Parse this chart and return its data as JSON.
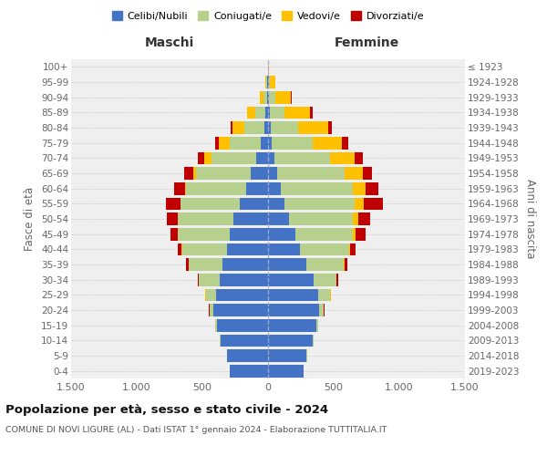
{
  "age_groups": [
    "0-4",
    "5-9",
    "10-14",
    "15-19",
    "20-24",
    "25-29",
    "30-34",
    "35-39",
    "40-44",
    "45-49",
    "50-54",
    "55-59",
    "60-64",
    "65-69",
    "70-74",
    "75-79",
    "80-84",
    "85-89",
    "90-94",
    "95-99",
    "100+"
  ],
  "birth_years": [
    "2019-2023",
    "2014-2018",
    "2009-2013",
    "2004-2008",
    "1999-2003",
    "1994-1998",
    "1989-1993",
    "1984-1988",
    "1979-1983",
    "1974-1978",
    "1969-1973",
    "1964-1968",
    "1959-1963",
    "1954-1958",
    "1949-1953",
    "1944-1948",
    "1939-1943",
    "1934-1938",
    "1929-1933",
    "1924-1928",
    "≤ 1923"
  ],
  "male_celibi": [
    290,
    310,
    360,
    390,
    415,
    395,
    365,
    345,
    315,
    295,
    265,
    215,
    165,
    130,
    88,
    55,
    28,
    18,
    8,
    5,
    2
  ],
  "male_coniugati": [
    2,
    3,
    5,
    10,
    30,
    80,
    160,
    260,
    340,
    390,
    420,
    450,
    460,
    420,
    340,
    240,
    150,
    80,
    30,
    8,
    0
  ],
  "male_vedovi": [
    0,
    0,
    0,
    1,
    1,
    2,
    1,
    1,
    2,
    3,
    5,
    5,
    10,
    20,
    60,
    80,
    90,
    60,
    25,
    5,
    0
  ],
  "male_divorziati": [
    0,
    0,
    0,
    1,
    2,
    5,
    10,
    20,
    30,
    55,
    80,
    110,
    80,
    70,
    50,
    30,
    20,
    5,
    2,
    0,
    0
  ],
  "female_celibi": [
    270,
    295,
    340,
    370,
    390,
    385,
    345,
    295,
    245,
    205,
    158,
    122,
    95,
    70,
    50,
    30,
    18,
    12,
    7,
    5,
    2
  ],
  "female_coniugati": [
    2,
    3,
    5,
    12,
    35,
    90,
    175,
    280,
    370,
    440,
    490,
    540,
    550,
    510,
    420,
    310,
    210,
    110,
    50,
    12,
    0
  ],
  "female_vedovi": [
    0,
    0,
    0,
    0,
    1,
    2,
    3,
    6,
    12,
    25,
    40,
    65,
    95,
    140,
    190,
    220,
    230,
    200,
    120,
    40,
    2
  ],
  "female_divorziati": [
    0,
    0,
    0,
    1,
    2,
    5,
    10,
    20,
    40,
    70,
    90,
    150,
    100,
    75,
    60,
    50,
    30,
    15,
    5,
    0,
    0
  ],
  "color_celibi": "#4472c4",
  "color_coniugati": "#b8d08d",
  "color_vedovi": "#ffc000",
  "color_divorziati": "#c00000",
  "title": "Popolazione per età, sesso e stato civile - 2024",
  "subtitle": "COMUNE DI NOVI LIGURE (AL) - Dati ISTAT 1° gennaio 2024 - Elaborazione TUTTITALIA.IT",
  "xlabel_left": "Maschi",
  "xlabel_right": "Femmine",
  "ylabel_left": "Fasce di età",
  "ylabel_right": "Anni di nascita",
  "xlim": 1500,
  "bg_color": "#efefef"
}
